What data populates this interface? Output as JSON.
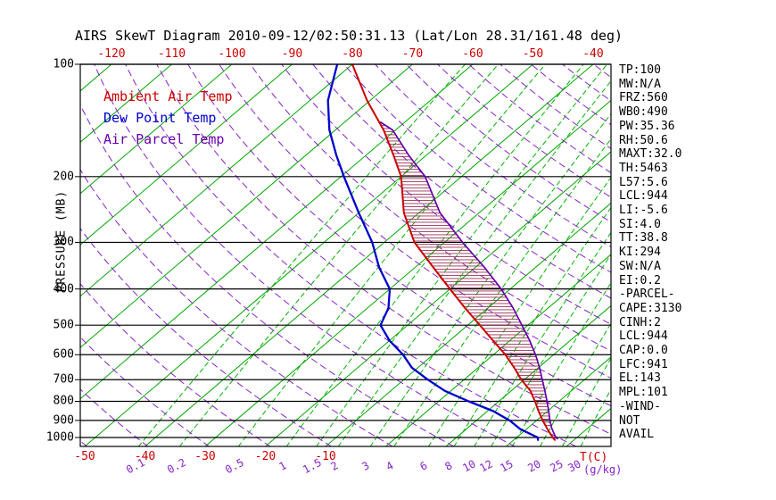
{
  "title": "AIRS SkewT Diagram 2010-09-12/02:50:31.13 (Lat/Lon 28.31/161.48 deg)",
  "colors": {
    "isobar": "#000000",
    "isotherm": "#00a800",
    "mixing_line": "#00b400",
    "dry_adiabat": "#8822cc",
    "hatch": "#993355",
    "axis_temp_label": "#cc0000",
    "mixing_label": "#8822cc",
    "title_text": "#000000",
    "stats_text": "#000000"
  },
  "legend": [
    {
      "label": "Ambient Air Temp"
    },
    {
      "label": "Dew Point Temp"
    },
    {
      "label": "Air Parcel Temp"
    }
  ],
  "y_axis": {
    "label": "PRESSURE (MB)",
    "ticks": [
      100,
      200,
      300,
      400,
      500,
      600,
      700,
      800,
      900,
      1000
    ]
  },
  "x_axis_top": {
    "ticks": [
      -120,
      -110,
      -100,
      -90,
      -80,
      -70,
      -60,
      -50,
      -40
    ]
  },
  "x_axis_bottom": {
    "ticks": [
      -50,
      -40,
      -30,
      -20,
      -10
    ],
    "unit_label": "T(C)"
  },
  "mixing_axis": {
    "unit_label": "(g/kg)"
  },
  "stats": {
    "lines": [
      "TP:100",
      "MW:N/A",
      "FRZ:560",
      "WB0:490",
      "PW:35.36",
      "RH:50.6",
      "MAXT:32.0",
      "TH:5463",
      "L57:5.6",
      "LCL:944",
      "LI:-5.6",
      "SI:4.0",
      "TT:38.8",
      "KI:294",
      "SW:N/A",
      "EI:0.2",
      "-PARCEL-",
      "CAPE:3130",
      "CINH:2",
      "LCL:944",
      "CAP:0.0",
      "LFC:941",
      "EL:143",
      "MPL:101",
      "-WIND-",
      "NOT",
      "AVAIL"
    ]
  },
  "chart_data": {
    "type": "line",
    "variant": "skew-t-log-p",
    "title": "AIRS SkewT Diagram 2010-09-12/02:50:31.13 (Lat/Lon 28.31/161.48 deg)",
    "xlabel": "T(C)",
    "ylabel": "PRESSURE (MB)",
    "pressure_range_mb": [
      100,
      1057
    ],
    "isotherms_c": {
      "start": -130,
      "end": 40,
      "step": 10
    },
    "dry_adiabats_theta_k": {
      "start": 220,
      "end": 460,
      "step": 10
    },
    "mixing_ratio_lines_g_kg": [
      0.1,
      0.2,
      0.5,
      1,
      1.5,
      2,
      3,
      4,
      6,
      8,
      10,
      12,
      15,
      20,
      25,
      30
    ],
    "series": [
      {
        "name": "Ambient Air Temp",
        "color": "#cc0000",
        "points_mb_c": [
          [
            1015,
            26.8
          ],
          [
            1000,
            26
          ],
          [
            950,
            23.5
          ],
          [
            900,
            21
          ],
          [
            850,
            18.5
          ],
          [
            800,
            16
          ],
          [
            750,
            13.2
          ],
          [
            700,
            9.5
          ],
          [
            650,
            6
          ],
          [
            600,
            2
          ],
          [
            550,
            -2.8
          ],
          [
            500,
            -8
          ],
          [
            450,
            -13.8
          ],
          [
            400,
            -20
          ],
          [
            350,
            -27
          ],
          [
            300,
            -35
          ],
          [
            250,
            -42.5
          ],
          [
            200,
            -50
          ],
          [
            175,
            -55.5
          ],
          [
            150,
            -62
          ],
          [
            125,
            -70.5
          ],
          [
            100,
            -80
          ]
        ]
      },
      {
        "name": "Dew Point Temp",
        "color": "#0000cc",
        "points_mb_c": [
          [
            1015,
            24
          ],
          [
            1000,
            23.5
          ],
          [
            950,
            19
          ],
          [
            900,
            15.5
          ],
          [
            850,
            11
          ],
          [
            800,
            5
          ],
          [
            750,
            -1
          ],
          [
            700,
            -6
          ],
          [
            650,
            -11
          ],
          [
            600,
            -15
          ],
          [
            550,
            -20
          ],
          [
            500,
            -24.5
          ],
          [
            450,
            -26.5
          ],
          [
            400,
            -30
          ],
          [
            350,
            -36
          ],
          [
            300,
            -42
          ],
          [
            250,
            -50
          ],
          [
            200,
            -59.5
          ],
          [
            175,
            -65
          ],
          [
            150,
            -71
          ],
          [
            125,
            -77
          ],
          [
            100,
            -82.5
          ]
        ]
      },
      {
        "name": "Air Parcel Temp",
        "color": "#6600aa",
        "points_mb_c": [
          [
            1008,
            27
          ],
          [
            1000,
            26.5
          ],
          [
            944,
            24
          ],
          [
            900,
            22.2
          ],
          [
            850,
            20.2
          ],
          [
            800,
            18
          ],
          [
            750,
            15.6
          ],
          [
            700,
            13
          ],
          [
            650,
            10.2
          ],
          [
            600,
            7
          ],
          [
            550,
            3.3
          ],
          [
            500,
            -1
          ],
          [
            450,
            -5.8
          ],
          [
            400,
            -11.5
          ],
          [
            350,
            -18.5
          ],
          [
            300,
            -27
          ],
          [
            250,
            -36.5
          ],
          [
            200,
            -46
          ],
          [
            175,
            -53
          ],
          [
            150,
            -60.5
          ],
          [
            143,
            -64
          ]
        ]
      }
    ],
    "cape_hatch_region_mb": {
      "from": 941,
      "to": 143
    }
  }
}
